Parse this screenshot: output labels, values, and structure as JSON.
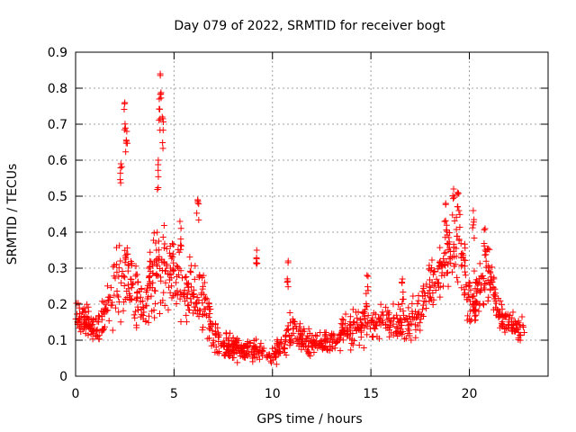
{
  "chart_data": {
    "type": "scatter",
    "title": "Day 079 of 2022, SRMTID for receiver bogt",
    "xlabel": "GPS time / hours",
    "ylabel": "SRMTID / TECUs",
    "xlim": [
      0,
      24
    ],
    "ylim": [
      0,
      0.9
    ],
    "grid": true,
    "marker": "+",
    "series_color": "#ff0000",
    "x_ticks": [
      0,
      5,
      10,
      15,
      20
    ],
    "x_tick_labels": [
      "0",
      "5",
      "10",
      "15",
      "20"
    ],
    "y_ticks": [
      0,
      0.1,
      0.2,
      0.3,
      0.4,
      0.5,
      0.6,
      0.7,
      0.8,
      0.9
    ],
    "y_tick_labels": [
      "0",
      "0.1",
      "0.2",
      "0.3",
      "0.4",
      "0.5",
      "0.6",
      "0.7",
      "0.8",
      "0.9"
    ],
    "envelope": {
      "description": "approximate typical (median) SRMTID level and spread versus GPS time",
      "hours": [
        0,
        0.5,
        1,
        1.5,
        2,
        2.5,
        3,
        3.5,
        4,
        4.5,
        5,
        5.5,
        6,
        6.5,
        7,
        7.5,
        8,
        8.5,
        9,
        9.5,
        10,
        10.5,
        11,
        11.5,
        12,
        12.5,
        13,
        13.5,
        14,
        14.5,
        15,
        15.5,
        16,
        16.5,
        17,
        17.5,
        18,
        18.5,
        19,
        19.5,
        20,
        20.5,
        21,
        21.5,
        22,
        22.5,
        22.8
      ],
      "median": [
        0.18,
        0.16,
        0.13,
        0.17,
        0.25,
        0.3,
        0.24,
        0.18,
        0.28,
        0.32,
        0.28,
        0.25,
        0.22,
        0.22,
        0.12,
        0.08,
        0.08,
        0.07,
        0.07,
        0.06,
        0.05,
        0.08,
        0.13,
        0.1,
        0.09,
        0.09,
        0.1,
        0.12,
        0.13,
        0.14,
        0.15,
        0.16,
        0.15,
        0.15,
        0.16,
        0.18,
        0.25,
        0.3,
        0.35,
        0.38,
        0.2,
        0.22,
        0.28,
        0.17,
        0.14,
        0.13,
        0.13
      ],
      "spread": [
        0.06,
        0.05,
        0.05,
        0.07,
        0.12,
        0.15,
        0.12,
        0.06,
        0.15,
        0.16,
        0.12,
        0.1,
        0.1,
        0.1,
        0.05,
        0.04,
        0.04,
        0.03,
        0.04,
        0.03,
        0.03,
        0.04,
        0.06,
        0.04,
        0.04,
        0.03,
        0.04,
        0.05,
        0.05,
        0.06,
        0.06,
        0.06,
        0.06,
        0.06,
        0.06,
        0.07,
        0.08,
        0.09,
        0.1,
        0.1,
        0.08,
        0.09,
        0.09,
        0.05,
        0.04,
        0.04,
        0.04
      ]
    },
    "peaks": [
      {
        "x": 2.5,
        "y": 0.76
      },
      {
        "x": 2.6,
        "y": 0.68
      },
      {
        "x": 2.3,
        "y": 0.59
      },
      {
        "x": 4.25,
        "y": 0.77
      },
      {
        "x": 4.3,
        "y": 0.84
      },
      {
        "x": 4.4,
        "y": 0.72
      },
      {
        "x": 4.2,
        "y": 0.6
      },
      {
        "x": 6.2,
        "y": 0.49
      },
      {
        "x": 5.3,
        "y": 0.43
      },
      {
        "x": 9.2,
        "y": 0.35
      },
      {
        "x": 10.8,
        "y": 0.32
      },
      {
        "x": 19.2,
        "y": 0.52
      },
      {
        "x": 19.4,
        "y": 0.51
      },
      {
        "x": 18.8,
        "y": 0.48
      },
      {
        "x": 20.2,
        "y": 0.46
      },
      {
        "x": 20.8,
        "y": 0.41
      },
      {
        "x": 14.8,
        "y": 0.28
      },
      {
        "x": 16.6,
        "y": 0.27
      }
    ]
  }
}
